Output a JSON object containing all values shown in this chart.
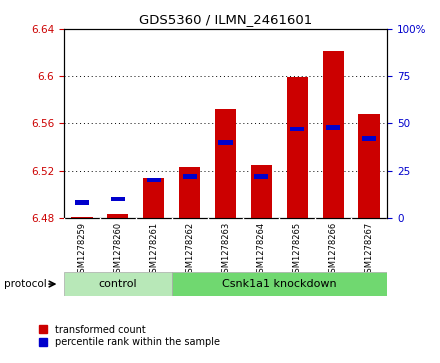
{
  "title": "GDS5360 / ILMN_2461601",
  "samples": [
    "GSM1278259",
    "GSM1278260",
    "GSM1278261",
    "GSM1278262",
    "GSM1278263",
    "GSM1278264",
    "GSM1278265",
    "GSM1278266",
    "GSM1278267"
  ],
  "transformed_counts": [
    6.481,
    6.483,
    6.514,
    6.523,
    6.572,
    6.525,
    6.599,
    6.621,
    6.568
  ],
  "percentile_ranks": [
    8,
    10,
    20,
    22,
    40,
    22,
    47,
    48,
    42
  ],
  "bar_bottom": 6.48,
  "ylim_left": [
    6.48,
    6.64
  ],
  "ylim_right": [
    0,
    100
  ],
  "yticks_left": [
    6.48,
    6.52,
    6.56,
    6.6,
    6.64
  ],
  "yticks_right": [
    0,
    25,
    50,
    75,
    100
  ],
  "ytick_right_labels": [
    "0",
    "25",
    "50",
    "75",
    "100%"
  ],
  "bar_color": "#cc0000",
  "percentile_color": "#0000cc",
  "n_control": 3,
  "n_knockdown": 6,
  "control_label": "control",
  "knockdown_label": "Csnk1a1 knockdown",
  "protocol_label": "protocol",
  "legend_red": "transformed count",
  "legend_blue": "percentile rank within the sample",
  "bar_width": 0.6,
  "left_tick_color": "#cc0000",
  "right_tick_color": "#0000cc",
  "control_bg": "#b8e8b8",
  "knockdown_bg": "#70d870",
  "xticklabel_bg": "#d0d0d0"
}
